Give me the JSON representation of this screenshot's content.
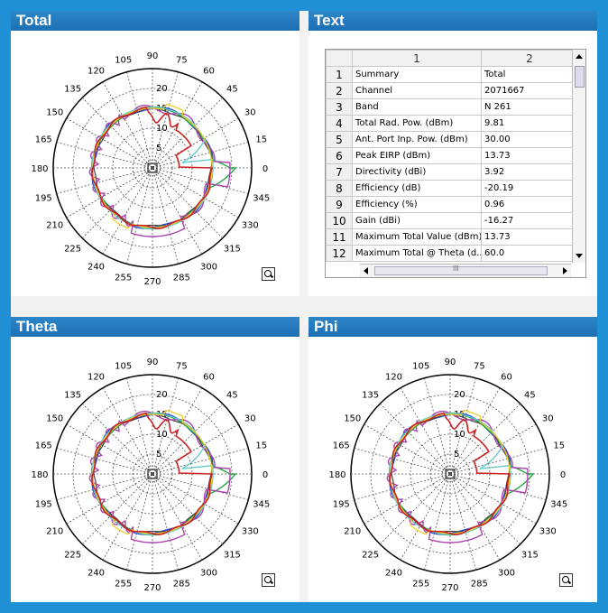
{
  "panels": {
    "total": {
      "title": "Total"
    },
    "text": {
      "title": "Text"
    },
    "theta": {
      "title": "Theta"
    },
    "phi": {
      "title": "Phi"
    }
  },
  "table": {
    "col_headers": [
      "1",
      "2"
    ],
    "rows": [
      {
        "n": "1",
        "label": "Summary",
        "value": "Total"
      },
      {
        "n": "2",
        "label": "Channel",
        "value": "2071667"
      },
      {
        "n": "3",
        "label": "Band",
        "value": "N 261"
      },
      {
        "n": "4",
        "label": "Total Rad. Pow. (dBm)",
        "value": "9.81"
      },
      {
        "n": "5",
        "label": "Ant. Port Inp. Pow. (dBm)",
        "value": "30.00"
      },
      {
        "n": "6",
        "label": "Peak EIRP (dBm)",
        "value": "13.73"
      },
      {
        "n": "7",
        "label": "Directivity (dBi)",
        "value": "3.92"
      },
      {
        "n": "8",
        "label": "Efficiency (dB)",
        "value": "-20.19"
      },
      {
        "n": "9",
        "label": "Efficiency (%)",
        "value": "0.96"
      },
      {
        "n": "10",
        "label": "Gain (dBi)",
        "value": "-16.27"
      },
      {
        "n": "11",
        "label": "Maximum Total Value (dBm)",
        "value": "13.73"
      },
      {
        "n": "12",
        "label": "Maximum Total @ Theta (d...",
        "value": "60.0"
      }
    ],
    "scroll_mark": "III"
  },
  "chart_data": [
    {
      "type": "polar",
      "panel": "total",
      "angle_labels": [
        "0",
        "15",
        "30",
        "45",
        "60",
        "75",
        "90",
        "105",
        "120",
        "135",
        "150",
        "165",
        "180",
        "195",
        "210",
        "225",
        "240",
        "255",
        "270",
        "285",
        "300",
        "315",
        "330",
        "345"
      ],
      "radial_labels": [
        "20",
        "15",
        "10",
        "5"
      ],
      "colors": [
        "#cc2222",
        "#22aa44",
        "#2244cc",
        "#66cccc",
        "#aa44aa",
        "#eecc22",
        "#444444"
      ]
    },
    {
      "type": "polar",
      "panel": "theta",
      "angle_labels": [
        "0",
        "15",
        "30",
        "45",
        "60",
        "75",
        "90",
        "105",
        "120",
        "135",
        "150",
        "165",
        "180",
        "195",
        "210",
        "225",
        "240",
        "255",
        "270",
        "285",
        "300",
        "315",
        "330",
        "345"
      ],
      "radial_labels": [
        "20",
        "15",
        "10",
        "5"
      ],
      "colors": [
        "#cc2222",
        "#22aa44",
        "#2244cc",
        "#66cccc",
        "#aa44aa",
        "#eecc22",
        "#444444"
      ]
    },
    {
      "type": "polar",
      "panel": "phi",
      "angle_labels": [
        "0",
        "15",
        "30",
        "45",
        "60",
        "75",
        "90",
        "105",
        "120",
        "135",
        "150",
        "165",
        "180",
        "195",
        "210",
        "225",
        "240",
        "255",
        "270",
        "285",
        "300",
        "315",
        "330",
        "345"
      ],
      "radial_labels": [
        "20",
        "15",
        "10",
        "5"
      ],
      "colors": [
        "#cc2222",
        "#22aa44",
        "#2244cc",
        "#66cccc",
        "#aa44aa",
        "#eecc22",
        "#444444"
      ]
    }
  ]
}
